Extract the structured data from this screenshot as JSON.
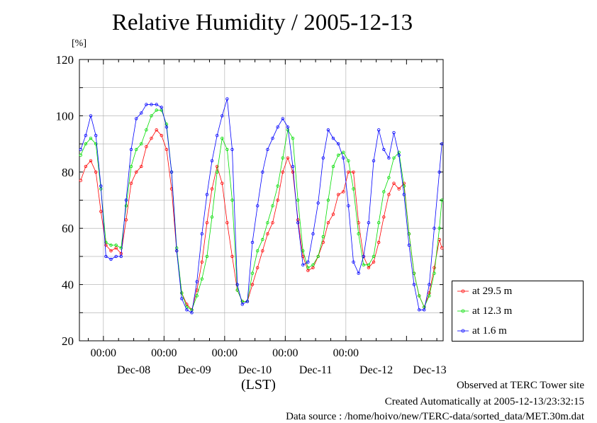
{
  "chart_data": {
    "type": "line",
    "title": "Relative Humidity / 2005-12-13",
    "ylabel": "[%]",
    "xlabel": "(LST)",
    "ylim": [
      20,
      120
    ],
    "yticks": [
      20,
      40,
      60,
      80,
      100,
      120
    ],
    "x_tick_time": "00:00",
    "x_day_labels": [
      "Dec-08",
      "Dec-09",
      "Dec-10",
      "Dec-11",
      "Dec-12",
      "Dec-13"
    ],
    "x_unit": "hours since 2005-12-07 00:00 LST",
    "xlim": [
      14.5,
      158.5
    ],
    "grid": true,
    "legend_position": "lower-right outside",
    "series": [
      {
        "name": "at 29.5 m",
        "color": "#ff0000",
        "x": [
          15,
          17,
          19,
          21,
          23,
          25,
          27,
          29,
          31,
          33,
          35,
          37,
          39,
          41,
          43,
          45,
          47,
          49,
          51,
          53,
          55,
          57,
          59,
          61,
          63,
          65,
          67,
          69,
          71,
          73,
          75,
          77,
          79,
          81,
          83,
          85,
          87,
          89,
          91,
          93,
          95,
          97,
          99,
          101,
          103,
          105,
          107,
          109,
          111,
          113,
          115,
          117,
          119,
          121,
          123,
          125,
          127,
          129,
          131,
          133,
          135,
          137,
          139,
          141,
          143,
          145,
          147,
          149,
          151,
          153,
          155,
          157,
          158
        ],
        "y": [
          77,
          82,
          84,
          80,
          66,
          54,
          52,
          53,
          51,
          63,
          76,
          80,
          82,
          89,
          92,
          95,
          93,
          88,
          74,
          52,
          37,
          33,
          31,
          38,
          48,
          62,
          74,
          82,
          76,
          62,
          50,
          38,
          34,
          34,
          40,
          46,
          52,
          58,
          62,
          70,
          80,
          85,
          80,
          63,
          50,
          45,
          46,
          50,
          55,
          62,
          65,
          72,
          73,
          80,
          80,
          62,
          50,
          46,
          48,
          55,
          64,
          72,
          76,
          74,
          76,
          58,
          44,
          36,
          32,
          37,
          46,
          56,
          53
        ]
      },
      {
        "name": "at 12.3 m",
        "color": "#00dd00",
        "x": [
          15,
          17,
          19,
          21,
          23,
          25,
          27,
          29,
          31,
          33,
          35,
          37,
          39,
          41,
          43,
          45,
          47,
          49,
          51,
          53,
          55,
          57,
          59,
          61,
          63,
          65,
          67,
          69,
          71,
          73,
          75,
          77,
          79,
          81,
          83,
          85,
          87,
          89,
          91,
          93,
          95,
          97,
          99,
          101,
          103,
          105,
          107,
          109,
          111,
          113,
          115,
          117,
          119,
          121,
          123,
          125,
          127,
          129,
          131,
          133,
          135,
          137,
          139,
          141,
          143,
          145,
          147,
          149,
          151,
          153,
          155,
          157,
          158
        ],
        "y": [
          86,
          90,
          92,
          90,
          74,
          55,
          54,
          54,
          53,
          68,
          82,
          88,
          90,
          95,
          100,
          102,
          102,
          97,
          80,
          53,
          37,
          32,
          31,
          36,
          42,
          50,
          64,
          80,
          92,
          88,
          70,
          38,
          34,
          34,
          44,
          52,
          56,
          62,
          68,
          75,
          85,
          95,
          92,
          70,
          52,
          46,
          47,
          50,
          57,
          70,
          82,
          86,
          87,
          84,
          74,
          58,
          47,
          47,
          50,
          62,
          73,
          78,
          85,
          87,
          75,
          58,
          44,
          36,
          32,
          36,
          44,
          60,
          70
        ]
      },
      {
        "name": "at 1.6 m",
        "color": "#0000ff",
        "x": [
          15,
          17,
          19,
          21,
          23,
          25,
          27,
          29,
          31,
          33,
          35,
          37,
          39,
          41,
          43,
          45,
          47,
          49,
          51,
          53,
          55,
          57,
          59,
          61,
          63,
          65,
          67,
          69,
          71,
          73,
          75,
          77,
          79,
          81,
          83,
          85,
          87,
          89,
          91,
          93,
          95,
          97,
          99,
          101,
          103,
          105,
          107,
          109,
          111,
          113,
          115,
          117,
          119,
          121,
          123,
          125,
          127,
          129,
          131,
          133,
          135,
          137,
          139,
          141,
          143,
          145,
          147,
          149,
          151,
          153,
          155,
          157,
          158
        ],
        "y": [
          88,
          93,
          100,
          93,
          75,
          50,
          49,
          50,
          50,
          70,
          88,
          99,
          101,
          104,
          104,
          104,
          103,
          96,
          80,
          52,
          35,
          31,
          30,
          41,
          58,
          72,
          84,
          93,
          100,
          106,
          88,
          40,
          33,
          34,
          55,
          68,
          80,
          88,
          92,
          96,
          99,
          96,
          82,
          62,
          47,
          48,
          58,
          69,
          85,
          95,
          92,
          90,
          85,
          68,
          48,
          44,
          50,
          62,
          84,
          95,
          88,
          85,
          94,
          86,
          72,
          54,
          40,
          31,
          31,
          40,
          60,
          80,
          90
        ]
      }
    ]
  },
  "footer": {
    "observed": "Observed at TERC Tower site",
    "created": "Created Automatically at 2005-12-13/23:32:15",
    "source": "Data source : /home/hoivo/new/TERC-data/sorted_data/MET.30m.dat"
  }
}
